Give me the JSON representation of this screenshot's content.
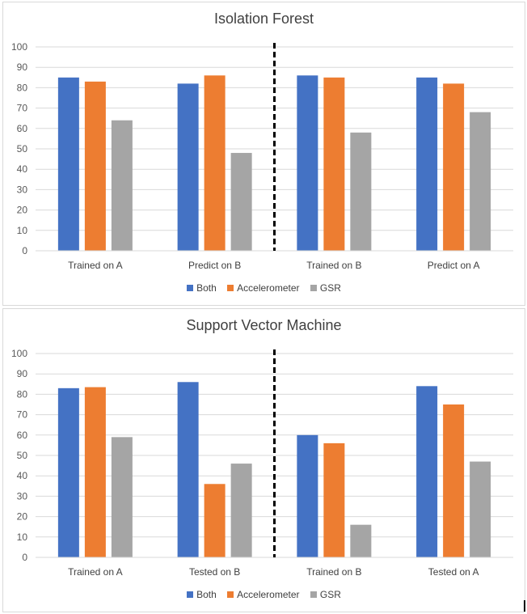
{
  "colors": {
    "Both": "#4472c4",
    "Accelerometer": "#ed7d31",
    "GSR": "#a5a5a5"
  },
  "chart_data": [
    {
      "type": "bar",
      "title": "Isolation Forest",
      "categories": [
        "Trained on A",
        "Predict on B",
        "Trained on B",
        "Predict on A"
      ],
      "series": [
        {
          "name": "Both",
          "values": [
            85,
            82,
            86,
            85
          ]
        },
        {
          "name": "Accelerometer",
          "values": [
            83,
            86,
            85,
            82
          ]
        },
        {
          "name": "GSR",
          "values": [
            64,
            48,
            58,
            68
          ]
        }
      ],
      "ylim": [
        0,
        100
      ],
      "yticks": [
        "0",
        "10",
        "20",
        "30",
        "40",
        "50",
        "60",
        "70",
        "80",
        "90",
        "100"
      ],
      "grid": true,
      "legend": "bottom",
      "divider": "dashed vertical line between second and third groups"
    },
    {
      "type": "bar",
      "title": "Support Vector Machine",
      "categories": [
        "Trained on A",
        "Tested on B",
        "Trained on B",
        "Tested on A"
      ],
      "series": [
        {
          "name": "Both",
          "values": [
            83,
            86,
            60,
            84
          ]
        },
        {
          "name": "Accelerometer",
          "values": [
            83.5,
            36,
            56,
            75
          ]
        },
        {
          "name": "GSR",
          "values": [
            59,
            46,
            16,
            47
          ]
        }
      ],
      "ylim": [
        0,
        100
      ],
      "yticks": [
        "0",
        "10",
        "20",
        "30",
        "40",
        "50",
        "60",
        "70",
        "80",
        "90",
        "100"
      ],
      "grid": true,
      "legend": "bottom",
      "divider": "dashed vertical line between second and third groups"
    }
  ]
}
